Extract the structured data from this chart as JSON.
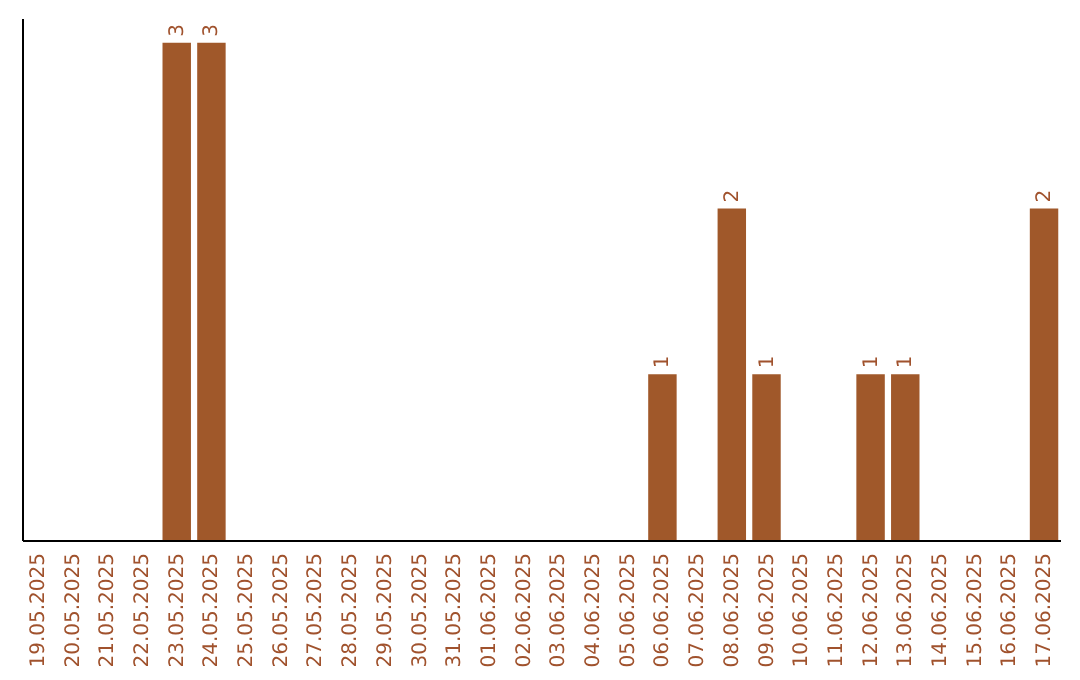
{
  "chart_data": {
    "type": "bar",
    "categories": [
      "19.05.2025",
      "20.05.2025",
      "21.05.2025",
      "22.05.2025",
      "23.05.2025",
      "24.05.2025",
      "25.05.2025",
      "26.05.2025",
      "27.05.2025",
      "28.05.2025",
      "29.05.2025",
      "30.05.2025",
      "31.05.2025",
      "01.06.2025",
      "02.06.2025",
      "03.06.2025",
      "04.06.2025",
      "05.06.2025",
      "06.06.2025",
      "07.06.2025",
      "08.06.2025",
      "09.06.2025",
      "10.06.2025",
      "11.06.2025",
      "12.06.2025",
      "13.06.2025",
      "14.06.2025",
      "15.06.2025",
      "16.06.2025",
      "17.06.2025"
    ],
    "values": [
      0,
      0,
      0,
      0,
      3,
      3,
      0,
      0,
      0,
      0,
      0,
      0,
      0,
      0,
      0,
      0,
      0,
      0,
      1,
      0,
      2,
      1,
      0,
      0,
      1,
      1,
      0,
      0,
      0,
      2
    ],
    "value_labels": [
      null,
      null,
      null,
      null,
      "3",
      "3",
      null,
      null,
      null,
      null,
      null,
      null,
      null,
      null,
      null,
      null,
      null,
      null,
      "1",
      null,
      "2",
      "1",
      null,
      null,
      "1",
      "1",
      null,
      null,
      null,
      "2"
    ],
    "color": "#a0582a",
    "ylim": [
      0,
      3.15
    ]
  }
}
